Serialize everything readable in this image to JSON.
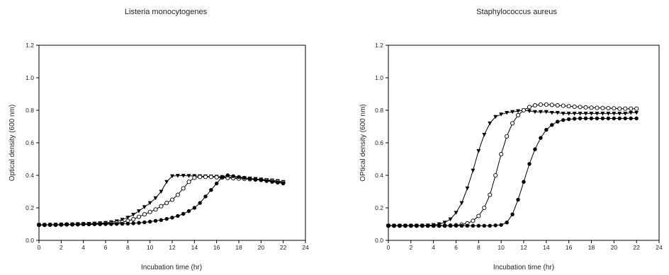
{
  "chart_data": [
    {
      "type": "scatter",
      "title": "Listeria monocytogenes",
      "xlabel": "Incubation time (hr)",
      "ylabel": "Optical density (600 nm)",
      "xlim": [
        0,
        24
      ],
      "ylim": [
        0.0,
        1.2
      ],
      "xticks": [
        "0",
        "2",
        "4",
        "6",
        "8",
        "10",
        "12",
        "14",
        "16",
        "18",
        "20",
        "22",
        "24"
      ],
      "yticks": [
        "0.0",
        "0.2",
        "0.4",
        "0.6",
        "0.8",
        "1.0",
        "1.2"
      ],
      "grid": false,
      "series": [
        {
          "marker": "filled-triangle-down",
          "x": [
            0,
            0.5,
            1,
            1.5,
            2,
            2.5,
            3,
            3.5,
            4,
            4.5,
            5,
            5.5,
            6,
            6.5,
            7,
            7.5,
            8,
            8.5,
            9,
            9.5,
            10,
            10.5,
            11,
            11.5,
            12,
            12.5,
            13,
            13.5,
            14,
            14.5,
            15,
            15.5,
            16,
            16.5,
            17,
            17.5,
            18,
            18.5,
            19,
            19.5,
            20,
            20.5,
            21,
            21.5,
            22
          ],
          "y": [
            0.095,
            0.095,
            0.095,
            0.096,
            0.097,
            0.098,
            0.099,
            0.1,
            0.101,
            0.102,
            0.104,
            0.106,
            0.108,
            0.112,
            0.118,
            0.127,
            0.14,
            0.158,
            0.18,
            0.205,
            0.23,
            0.26,
            0.3,
            0.36,
            0.395,
            0.398,
            0.398,
            0.397,
            0.396,
            0.395,
            0.394,
            0.393,
            0.392,
            0.39,
            0.389,
            0.387,
            0.385,
            0.383,
            0.381,
            0.378,
            0.375,
            0.372,
            0.369,
            0.365,
            0.36
          ]
        },
        {
          "marker": "open-circle",
          "x": [
            0,
            0.5,
            1,
            1.5,
            2,
            2.5,
            3,
            3.5,
            4,
            4.5,
            5,
            5.5,
            6,
            6.5,
            7,
            7.5,
            8,
            8.5,
            9,
            9.5,
            10,
            10.5,
            11,
            11.5,
            12,
            12.5,
            13,
            13.5,
            14,
            14.5,
            15,
            15.5,
            16,
            16.5,
            17,
            17.5,
            18,
            18.5,
            19,
            19.5,
            20,
            20.5,
            21,
            21.5,
            22
          ],
          "y": [
            0.095,
            0.095,
            0.096,
            0.096,
            0.097,
            0.098,
            0.098,
            0.099,
            0.1,
            0.1,
            0.101,
            0.102,
            0.103,
            0.105,
            0.108,
            0.112,
            0.12,
            0.13,
            0.145,
            0.16,
            0.175,
            0.19,
            0.21,
            0.23,
            0.25,
            0.28,
            0.32,
            0.36,
            0.385,
            0.39,
            0.39,
            0.39,
            0.388,
            0.386,
            0.384,
            0.382,
            0.38,
            0.378,
            0.376,
            0.374,
            0.372,
            0.37,
            0.365,
            0.36,
            0.355
          ]
        },
        {
          "marker": "filled-circle",
          "x": [
            0,
            0.5,
            1,
            1.5,
            2,
            2.5,
            3,
            3.5,
            4,
            4.5,
            5,
            5.5,
            6,
            6.5,
            7,
            7.5,
            8,
            8.5,
            9,
            9.5,
            10,
            10.5,
            11,
            11.5,
            12,
            12.5,
            13,
            13.5,
            14,
            14.5,
            15,
            15.5,
            16,
            16.5,
            17,
            17.5,
            18,
            18.5,
            19,
            19.5,
            20,
            20.5,
            21,
            21.5,
            22
          ],
          "y": [
            0.095,
            0.095,
            0.096,
            0.096,
            0.096,
            0.097,
            0.097,
            0.097,
            0.098,
            0.098,
            0.099,
            0.099,
            0.1,
            0.1,
            0.101,
            0.102,
            0.103,
            0.105,
            0.108,
            0.111,
            0.115,
            0.12,
            0.125,
            0.132,
            0.14,
            0.15,
            0.163,
            0.18,
            0.2,
            0.23,
            0.27,
            0.31,
            0.35,
            0.39,
            0.4,
            0.395,
            0.39,
            0.385,
            0.38,
            0.375,
            0.37,
            0.365,
            0.36,
            0.355,
            0.35
          ]
        }
      ]
    },
    {
      "type": "scatter",
      "title": "Staphylococcus aureus",
      "xlabel": "Incubation time (hr)",
      "ylabel": "OPtical density (600 nm)",
      "xlim": [
        0,
        24
      ],
      "ylim": [
        0.0,
        1.2
      ],
      "xticks": [
        "0",
        "2",
        "4",
        "6",
        "8",
        "10",
        "12",
        "14",
        "16",
        "18",
        "20",
        "22",
        "24"
      ],
      "yticks": [
        "0.0",
        "0.2",
        "0.4",
        "0.6",
        "0.8",
        "1.0",
        "1.2"
      ],
      "grid": false,
      "series": [
        {
          "marker": "filled-triangle-down",
          "x": [
            0,
            0.5,
            1,
            1.5,
            2,
            2.5,
            3,
            3.5,
            4,
            4.5,
            5,
            5.5,
            6,
            6.5,
            7,
            7.5,
            8,
            8.5,
            9,
            9.5,
            10,
            10.5,
            11,
            11.5,
            12,
            12.5,
            13,
            13.5,
            14,
            14.5,
            15,
            15.5,
            16,
            16.5,
            17,
            17.5,
            18,
            18.5,
            19,
            19.5,
            20,
            20.5,
            21,
            21.5,
            22
          ],
          "y": [
            0.09,
            0.09,
            0.09,
            0.09,
            0.09,
            0.09,
            0.091,
            0.092,
            0.095,
            0.1,
            0.11,
            0.13,
            0.17,
            0.23,
            0.32,
            0.43,
            0.55,
            0.65,
            0.72,
            0.76,
            0.775,
            0.785,
            0.79,
            0.795,
            0.8,
            0.795,
            0.79,
            0.79,
            0.79,
            0.785,
            0.785,
            0.78,
            0.78,
            0.78,
            0.78,
            0.78,
            0.78,
            0.78,
            0.78,
            0.78,
            0.78,
            0.78,
            0.78,
            0.785,
            0.785
          ]
        },
        {
          "marker": "open-circle",
          "x": [
            0,
            0.5,
            1,
            1.5,
            2,
            2.5,
            3,
            3.5,
            4,
            4.5,
            5,
            5.5,
            6,
            6.5,
            7,
            7.5,
            8,
            8.5,
            9,
            9.5,
            10,
            10.5,
            11,
            11.5,
            12,
            12.5,
            13,
            13.5,
            14,
            14.5,
            15,
            15.5,
            16,
            16.5,
            17,
            17.5,
            18,
            18.5,
            19,
            19.5,
            20,
            20.5,
            21,
            21.5,
            22
          ],
          "y": [
            0.09,
            0.09,
            0.09,
            0.09,
            0.09,
            0.09,
            0.09,
            0.09,
            0.09,
            0.09,
            0.09,
            0.091,
            0.093,
            0.097,
            0.105,
            0.12,
            0.15,
            0.2,
            0.28,
            0.4,
            0.53,
            0.64,
            0.72,
            0.77,
            0.8,
            0.82,
            0.83,
            0.835,
            0.835,
            0.833,
            0.83,
            0.828,
            0.825,
            0.822,
            0.82,
            0.818,
            0.816,
            0.815,
            0.814,
            0.813,
            0.812,
            0.81,
            0.81,
            0.81,
            0.81
          ]
        },
        {
          "marker": "filled-circle",
          "x": [
            0,
            0.5,
            1,
            1.5,
            2,
            2.5,
            3,
            3.5,
            4,
            4.5,
            5,
            5.5,
            6,
            6.5,
            7,
            7.5,
            8,
            8.5,
            9,
            9.5,
            10,
            10.5,
            11,
            11.5,
            12,
            12.5,
            13,
            13.5,
            14,
            14.5,
            15,
            15.5,
            16,
            16.5,
            17,
            17.5,
            18,
            18.5,
            19,
            19.5,
            20,
            20.5,
            21,
            21.5,
            22
          ],
          "y": [
            0.09,
            0.09,
            0.09,
            0.09,
            0.09,
            0.09,
            0.09,
            0.09,
            0.09,
            0.09,
            0.09,
            0.09,
            0.09,
            0.09,
            0.09,
            0.09,
            0.09,
            0.09,
            0.09,
            0.092,
            0.095,
            0.11,
            0.16,
            0.25,
            0.36,
            0.47,
            0.56,
            0.63,
            0.68,
            0.71,
            0.73,
            0.74,
            0.745,
            0.748,
            0.75,
            0.75,
            0.75,
            0.75,
            0.75,
            0.75,
            0.75,
            0.75,
            0.75,
            0.75,
            0.75
          ]
        }
      ]
    }
  ]
}
